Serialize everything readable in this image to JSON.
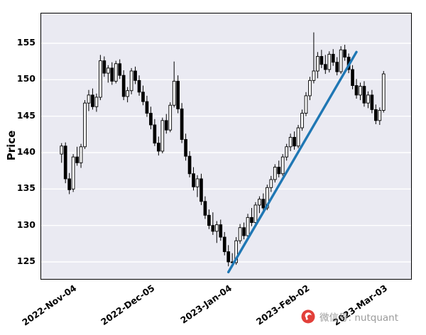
{
  "chart_data": {
    "type": "candlestick",
    "title": "",
    "ylabel": "Price",
    "yticks": [
      125,
      130,
      135,
      140,
      145,
      150,
      155
    ],
    "ylim": [
      122.6,
      159.1
    ],
    "grid": "horizontal-white",
    "xticks": [
      {
        "date": "2022-11-04",
        "label": "2022-Nov-04"
      },
      {
        "date": "2022-12-05",
        "label": "2022-Dec-05"
      },
      {
        "date": "2023-01-04",
        "label": "2023-Jan-04"
      },
      {
        "date": "2023-02-02",
        "label": "2023-Feb-02"
      },
      {
        "date": "2023-03-03",
        "label": "2023-Mar-03"
      }
    ],
    "dates": [
      "2022-11-01",
      "2022-11-02",
      "2022-11-03",
      "2022-11-04",
      "2022-11-07",
      "2022-11-08",
      "2022-11-09",
      "2022-11-10",
      "2022-11-11",
      "2022-11-14",
      "2022-11-15",
      "2022-11-16",
      "2022-11-17",
      "2022-11-18",
      "2022-11-21",
      "2022-11-22",
      "2022-11-23",
      "2022-11-25",
      "2022-11-28",
      "2022-11-29",
      "2022-11-30",
      "2022-12-01",
      "2022-12-02",
      "2022-12-05",
      "2022-12-06",
      "2022-12-07",
      "2022-12-08",
      "2022-12-09",
      "2022-12-12",
      "2022-12-13",
      "2022-12-14",
      "2022-12-15",
      "2022-12-16",
      "2022-12-19",
      "2022-12-20",
      "2022-12-21",
      "2022-12-22",
      "2022-12-23",
      "2022-12-27",
      "2022-12-28",
      "2022-12-29",
      "2022-12-30",
      "2023-01-03",
      "2023-01-04",
      "2023-01-05",
      "2023-01-06",
      "2023-01-09",
      "2023-01-10",
      "2023-01-11",
      "2023-01-12",
      "2023-01-13",
      "2023-01-17",
      "2023-01-18",
      "2023-01-19",
      "2023-01-20",
      "2023-01-23",
      "2023-01-24",
      "2023-01-25",
      "2023-01-26",
      "2023-01-27",
      "2023-01-30",
      "2023-01-31",
      "2023-02-01",
      "2023-02-02",
      "2023-02-03",
      "2023-02-06",
      "2023-02-07",
      "2023-02-08",
      "2023-02-09",
      "2023-02-10",
      "2023-02-13",
      "2023-02-14",
      "2023-02-15",
      "2023-02-16",
      "2023-02-17",
      "2023-02-21",
      "2023-02-22",
      "2023-02-23",
      "2023-02-24",
      "2023-02-27",
      "2023-02-28",
      "2023-03-01",
      "2023-03-02",
      "2023-03-03"
    ],
    "candles_ohlc": [
      [
        139.8,
        141.3,
        138.6,
        140.9
      ],
      [
        140.9,
        141.4,
        135.8,
        136.4
      ],
      [
        136.4,
        137.2,
        134.3,
        134.9
      ],
      [
        135.0,
        139.8,
        134.6,
        139.4
      ],
      [
        139.4,
        140.8,
        138.2,
        138.6
      ],
      [
        138.6,
        141.2,
        137.9,
        140.8
      ],
      [
        140.8,
        147.2,
        140.5,
        146.8
      ],
      [
        146.8,
        148.6,
        145.7,
        147.9
      ],
      [
        147.9,
        148.8,
        145.9,
        146.3
      ],
      [
        146.3,
        148.1,
        145.6,
        147.6
      ],
      [
        147.6,
        153.4,
        147.2,
        152.6
      ],
      [
        152.6,
        153.2,
        150.4,
        150.9
      ],
      [
        150.9,
        152.0,
        149.6,
        151.6
      ],
      [
        151.6,
        152.4,
        149.3,
        149.8
      ],
      [
        149.8,
        152.6,
        149.5,
        152.2
      ],
      [
        152.2,
        152.8,
        150.1,
        150.6
      ],
      [
        150.6,
        151.3,
        147.2,
        147.7
      ],
      [
        147.7,
        149.0,
        146.9,
        148.5
      ],
      [
        148.5,
        151.6,
        148.0,
        151.2
      ],
      [
        151.2,
        151.8,
        149.4,
        149.9
      ],
      [
        149.9,
        150.6,
        147.8,
        148.3
      ],
      [
        148.3,
        149.2,
        146.5,
        147.0
      ],
      [
        147.0,
        147.8,
        144.9,
        145.4
      ],
      [
        145.4,
        146.3,
        143.2,
        143.8
      ],
      [
        143.8,
        144.6,
        140.9,
        141.3
      ],
      [
        141.3,
        142.2,
        139.6,
        140.2
      ],
      [
        140.2,
        144.8,
        139.9,
        144.4
      ],
      [
        144.4,
        145.3,
        142.6,
        143.1
      ],
      [
        143.1,
        146.9,
        142.8,
        146.5
      ],
      [
        146.5,
        152.5,
        146.2,
        149.8
      ],
      [
        149.8,
        150.6,
        145.4,
        146.0
      ],
      [
        146.0,
        146.8,
        141.3,
        141.8
      ],
      [
        141.8,
        142.6,
        138.9,
        139.5
      ],
      [
        139.5,
        140.2,
        136.6,
        137.1
      ],
      [
        137.1,
        138.0,
        134.8,
        135.3
      ],
      [
        135.3,
        136.9,
        133.9,
        136.4
      ],
      [
        136.4,
        137.1,
        132.8,
        133.3
      ],
      [
        133.3,
        134.0,
        130.9,
        131.4
      ],
      [
        131.4,
        132.2,
        129.5,
        130.0
      ],
      [
        130.0,
        131.8,
        128.7,
        129.2
      ],
      [
        129.2,
        130.6,
        127.6,
        130.1
      ],
      [
        130.1,
        130.8,
        127.9,
        128.4
      ],
      [
        128.4,
        129.1,
        125.9,
        126.4
      ],
      [
        126.4,
        127.3,
        124.4,
        125.0
      ],
      [
        125.0,
        126.2,
        124.3,
        124.9
      ],
      [
        124.9,
        128.4,
        124.6,
        127.9
      ],
      [
        127.9,
        130.2,
        127.5,
        129.7
      ],
      [
        129.7,
        130.4,
        128.1,
        128.6
      ],
      [
        128.6,
        131.6,
        128.3,
        131.1
      ],
      [
        131.1,
        132.4,
        129.9,
        130.4
      ],
      [
        130.4,
        133.2,
        130.1,
        132.8
      ],
      [
        132.8,
        134.0,
        131.7,
        133.6
      ],
      [
        133.6,
        134.4,
        131.9,
        132.4
      ],
      [
        132.4,
        135.6,
        132.1,
        135.2
      ],
      [
        135.2,
        136.8,
        134.6,
        136.3
      ],
      [
        136.3,
        138.4,
        135.9,
        138.0
      ],
      [
        138.0,
        138.9,
        136.6,
        137.1
      ],
      [
        137.1,
        139.8,
        136.8,
        139.4
      ],
      [
        139.4,
        141.2,
        138.9,
        140.8
      ],
      [
        140.8,
        142.6,
        140.2,
        142.1
      ],
      [
        142.1,
        142.9,
        140.4,
        140.9
      ],
      [
        140.9,
        143.8,
        140.6,
        143.4
      ],
      [
        143.4,
        145.9,
        143.0,
        145.4
      ],
      [
        145.4,
        148.3,
        145.0,
        147.8
      ],
      [
        147.8,
        150.4,
        147.2,
        149.9
      ],
      [
        149.9,
        156.5,
        149.5,
        151.2
      ],
      [
        151.2,
        153.8,
        150.2,
        153.2
      ],
      [
        153.2,
        154.1,
        151.6,
        152.1
      ],
      [
        152.1,
        153.4,
        150.8,
        151.4
      ],
      [
        151.4,
        153.9,
        151.0,
        153.5
      ],
      [
        153.5,
        154.2,
        151.9,
        152.4
      ],
      [
        152.4,
        153.1,
        150.6,
        151.1
      ],
      [
        151.1,
        154.6,
        150.8,
        154.1
      ],
      [
        154.1,
        154.8,
        152.6,
        153.1
      ],
      [
        153.1,
        153.6,
        150.9,
        151.4
      ],
      [
        151.4,
        152.0,
        148.7,
        149.2
      ],
      [
        149.2,
        150.1,
        147.4,
        147.9
      ],
      [
        147.9,
        149.6,
        147.2,
        149.1
      ],
      [
        149.1,
        149.8,
        146.3,
        146.8
      ],
      [
        146.8,
        148.4,
        146.1,
        147.9
      ],
      [
        147.9,
        148.6,
        145.4,
        145.9
      ],
      [
        145.9,
        146.6,
        143.9,
        144.4
      ],
      [
        144.4,
        146.2,
        143.8,
        145.8
      ],
      [
        145.8,
        151.2,
        145.5,
        150.8
      ]
    ],
    "trendline": {
      "start_date": "2023-01-04",
      "start_price": 123.6,
      "end_date": "2023-02-22",
      "end_price": 153.8,
      "color": "#1f77b4",
      "width": 3.4
    },
    "colors": {
      "up_fill": "#ffffff",
      "down_fill": "#000000",
      "outline": "#000000",
      "wick": "#000000",
      "plot_bg": "#eaeaf2",
      "grid": "#ffffff"
    }
  },
  "watermark": {
    "text": "微信号: nutquant",
    "logo_color": "#e2403a"
  }
}
